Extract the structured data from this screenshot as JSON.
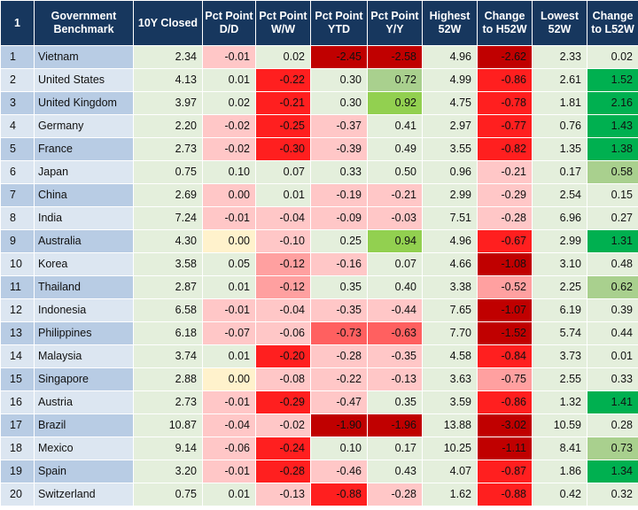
{
  "headers": [
    "1",
    "Government Benchmark",
    "10Y Closed",
    "Pct Point D/D",
    "Pct Point W/W",
    "Pct Point YTD",
    "Pct Point Y/Y",
    "Highest 52W",
    "Change to H52W",
    "Lowest 52W",
    "Change to L52W"
  ],
  "rows": [
    {
      "n": "1",
      "name": "Vietnam",
      "v": [
        "2.34",
        "-0.01",
        "0.02",
        "-2.45",
        "-2.58",
        "4.96",
        "-2.62",
        "2.33",
        "0.02"
      ]
    },
    {
      "n": "2",
      "name": "United States",
      "v": [
        "4.13",
        "0.01",
        "-0.22",
        "0.30",
        "0.72",
        "4.99",
        "-0.86",
        "2.61",
        "1.52"
      ]
    },
    {
      "n": "3",
      "name": "United Kingdom",
      "v": [
        "3.97",
        "0.02",
        "-0.21",
        "0.30",
        "0.92",
        "4.75",
        "-0.78",
        "1.81",
        "2.16"
      ]
    },
    {
      "n": "4",
      "name": "Germany",
      "v": [
        "2.20",
        "-0.02",
        "-0.25",
        "-0.37",
        "0.41",
        "2.97",
        "-0.77",
        "0.76",
        "1.43"
      ]
    },
    {
      "n": "5",
      "name": "France",
      "v": [
        "2.73",
        "-0.02",
        "-0.30",
        "-0.39",
        "0.49",
        "3.55",
        "-0.82",
        "1.35",
        "1.38"
      ]
    },
    {
      "n": "6",
      "name": "Japan",
      "v": [
        "0.75",
        "0.10",
        "0.07",
        "0.33",
        "0.50",
        "0.96",
        "-0.21",
        "0.17",
        "0.58"
      ]
    },
    {
      "n": "7",
      "name": "China",
      "v": [
        "2.69",
        "0.00",
        "0.01",
        "-0.19",
        "-0.21",
        "2.99",
        "-0.29",
        "2.54",
        "0.15"
      ]
    },
    {
      "n": "8",
      "name": "India",
      "v": [
        "7.24",
        "-0.01",
        "-0.04",
        "-0.09",
        "-0.03",
        "7.51",
        "-0.28",
        "6.96",
        "0.27"
      ]
    },
    {
      "n": "9",
      "name": "Australia",
      "v": [
        "4.30",
        "0.00",
        "-0.10",
        "0.25",
        "0.94",
        "4.96",
        "-0.67",
        "2.99",
        "1.31"
      ]
    },
    {
      "n": "10",
      "name": "Korea",
      "v": [
        "3.58",
        "0.05",
        "-0.12",
        "-0.16",
        "0.07",
        "4.66",
        "-1.08",
        "3.10",
        "0.48"
      ]
    },
    {
      "n": "11",
      "name": "Thailand",
      "v": [
        "2.87",
        "0.01",
        "-0.12",
        "0.35",
        "0.40",
        "3.38",
        "-0.52",
        "2.25",
        "0.62"
      ]
    },
    {
      "n": "12",
      "name": "Indonesia",
      "v": [
        "6.58",
        "-0.01",
        "-0.04",
        "-0.35",
        "-0.44",
        "7.65",
        "-1.07",
        "6.19",
        "0.39"
      ]
    },
    {
      "n": "13",
      "name": "Philippines",
      "v": [
        "6.18",
        "-0.07",
        "-0.06",
        "-0.73",
        "-0.63",
        "7.70",
        "-1.52",
        "5.74",
        "0.44"
      ]
    },
    {
      "n": "14",
      "name": "Malaysia",
      "v": [
        "3.74",
        "0.01",
        "-0.20",
        "-0.28",
        "-0.35",
        "4.58",
        "-0.84",
        "3.73",
        "0.01"
      ]
    },
    {
      "n": "15",
      "name": "Singapore",
      "v": [
        "2.88",
        "0.00",
        "-0.08",
        "-0.22",
        "-0.13",
        "3.63",
        "-0.75",
        "2.55",
        "0.33"
      ]
    },
    {
      "n": "16",
      "name": "Austria",
      "v": [
        "2.73",
        "-0.01",
        "-0.29",
        "-0.47",
        "0.35",
        "3.59",
        "-0.86",
        "1.32",
        "1.41"
      ]
    },
    {
      "n": "17",
      "name": "Brazil",
      "v": [
        "10.87",
        "-0.04",
        "-0.02",
        "-1.90",
        "-1.96",
        "13.88",
        "-3.02",
        "10.59",
        "0.28"
      ]
    },
    {
      "n": "18",
      "name": "Mexico",
      "v": [
        "9.14",
        "-0.06",
        "-0.24",
        "0.10",
        "0.17",
        "10.25",
        "-1.11",
        "8.41",
        "0.73"
      ]
    },
    {
      "n": "19",
      "name": "Spain",
      "v": [
        "3.20",
        "-0.01",
        "-0.28",
        "-0.46",
        "0.43",
        "4.07",
        "-0.87",
        "1.86",
        "1.34"
      ]
    },
    {
      "n": "20",
      "name": "Switzerland",
      "v": [
        "0.75",
        "0.01",
        "-0.13",
        "-0.88",
        "-0.28",
        "1.62",
        "-0.88",
        "0.42",
        "0.32"
      ]
    }
  ],
  "colors": {
    "header_bg": "#17375e",
    "row_band_dark": "#b8cce4",
    "row_band_light": "#dce6f1",
    "neutral": "#e4efdc",
    "pale_red": "#ffc7c7",
    "light_red": "#ffa0a0",
    "medium_red": "#ff6060",
    "bright_red": "#ff1f1f",
    "dark_red": "#c00000",
    "yellow": "#fff2cc",
    "light_green": "#a9d08e",
    "medium_green": "#92d050",
    "bright_green": "#00b050"
  },
  "cell_colors": [
    [
      "neutral",
      "pale_red",
      "neutral",
      "dark_red",
      "dark_red",
      "neutral",
      "dark_red",
      "neutral",
      "neutral"
    ],
    [
      "neutral",
      "neutral",
      "bright_red",
      "neutral",
      "light_green",
      "neutral",
      "bright_red",
      "neutral",
      "bright_green"
    ],
    [
      "neutral",
      "neutral",
      "bright_red",
      "neutral",
      "medium_green",
      "neutral",
      "bright_red",
      "neutral",
      "bright_green"
    ],
    [
      "neutral",
      "pale_red",
      "bright_red",
      "pale_red",
      "neutral",
      "neutral",
      "bright_red",
      "neutral",
      "bright_green"
    ],
    [
      "neutral",
      "pale_red",
      "bright_red",
      "pale_red",
      "neutral",
      "neutral",
      "bright_red",
      "neutral",
      "bright_green"
    ],
    [
      "neutral",
      "neutral",
      "neutral",
      "neutral",
      "neutral",
      "neutral",
      "pale_red",
      "neutral",
      "light_green"
    ],
    [
      "neutral",
      "pale_red",
      "neutral",
      "pale_red",
      "pale_red",
      "neutral",
      "pale_red",
      "neutral",
      "neutral"
    ],
    [
      "neutral",
      "pale_red",
      "pale_red",
      "pale_red",
      "pale_red",
      "neutral",
      "pale_red",
      "neutral",
      "neutral"
    ],
    [
      "neutral",
      "yellow",
      "pale_red",
      "neutral",
      "medium_green",
      "neutral",
      "bright_red",
      "neutral",
      "bright_green"
    ],
    [
      "neutral",
      "neutral",
      "light_red",
      "pale_red",
      "neutral",
      "neutral",
      "dark_red",
      "neutral",
      "neutral"
    ],
    [
      "neutral",
      "neutral",
      "light_red",
      "neutral",
      "neutral",
      "neutral",
      "light_red",
      "neutral",
      "light_green"
    ],
    [
      "neutral",
      "pale_red",
      "pale_red",
      "pale_red",
      "pale_red",
      "neutral",
      "dark_red",
      "neutral",
      "neutral"
    ],
    [
      "neutral",
      "pale_red",
      "pale_red",
      "medium_red",
      "medium_red",
      "neutral",
      "dark_red",
      "neutral",
      "neutral"
    ],
    [
      "neutral",
      "neutral",
      "bright_red",
      "pale_red",
      "pale_red",
      "neutral",
      "bright_red",
      "neutral",
      "neutral"
    ],
    [
      "neutral",
      "yellow",
      "pale_red",
      "pale_red",
      "pale_red",
      "neutral",
      "light_red",
      "neutral",
      "neutral"
    ],
    [
      "neutral",
      "pale_red",
      "bright_red",
      "pale_red",
      "neutral",
      "neutral",
      "bright_red",
      "neutral",
      "bright_green"
    ],
    [
      "neutral",
      "pale_red",
      "pale_red",
      "dark_red",
      "dark_red",
      "neutral",
      "dark_red",
      "neutral",
      "neutral"
    ],
    [
      "neutral",
      "pale_red",
      "bright_red",
      "neutral",
      "neutral",
      "neutral",
      "dark_red",
      "neutral",
      "light_green"
    ],
    [
      "neutral",
      "pale_red",
      "bright_red",
      "pale_red",
      "neutral",
      "neutral",
      "bright_red",
      "neutral",
      "bright_green"
    ],
    [
      "neutral",
      "neutral",
      "pale_red",
      "bright_red",
      "pale_red",
      "neutral",
      "bright_red",
      "neutral",
      "neutral"
    ]
  ]
}
